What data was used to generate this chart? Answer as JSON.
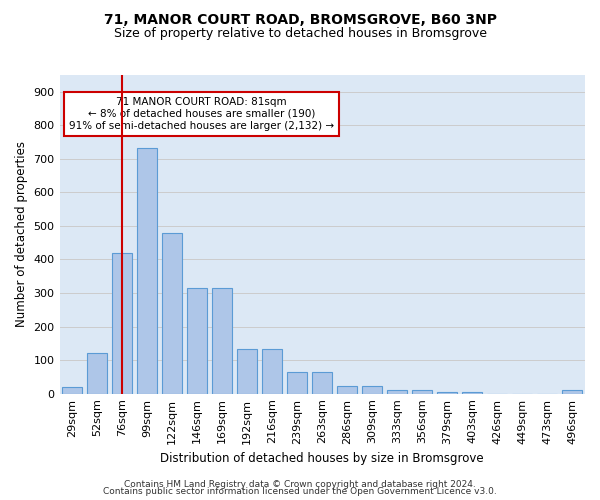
{
  "title1": "71, MANOR COURT ROAD, BROMSGROVE, B60 3NP",
  "title2": "Size of property relative to detached houses in Bromsgrove",
  "xlabel": "Distribution of detached houses by size in Bromsgrove",
  "ylabel": "Number of detached properties",
  "categories": [
    "29sqm",
    "52sqm",
    "76sqm",
    "99sqm",
    "122sqm",
    "146sqm",
    "169sqm",
    "192sqm",
    "216sqm",
    "239sqm",
    "263sqm",
    "286sqm",
    "309sqm",
    "333sqm",
    "356sqm",
    "379sqm",
    "403sqm",
    "426sqm",
    "449sqm",
    "473sqm",
    "496sqm"
  ],
  "values": [
    20,
    122,
    420,
    733,
    480,
    315,
    315,
    132,
    132,
    65,
    65,
    23,
    23,
    10,
    10,
    5,
    5,
    0,
    0,
    0,
    10
  ],
  "bar_color": "#aec6e8",
  "bar_edge_color": "#5b9bd5",
  "vline_x": 2,
  "vline_color": "#cc0000",
  "annotation_text": "71 MANOR COURT ROAD: 81sqm\n← 8% of detached houses are smaller (190)\n91% of semi-detached houses are larger (2,132) →",
  "annotation_box_color": "#ffffff",
  "annotation_box_edge": "#cc0000",
  "ylim": [
    0,
    950
  ],
  "yticks": [
    0,
    100,
    200,
    300,
    400,
    500,
    600,
    700,
    800,
    900
  ],
  "grid_color": "#cccccc",
  "bg_color": "#dce8f5",
  "fig_bg_color": "#ffffff",
  "footer1": "Contains HM Land Registry data © Crown copyright and database right 2024.",
  "footer2": "Contains public sector information licensed under the Open Government Licence v3.0."
}
